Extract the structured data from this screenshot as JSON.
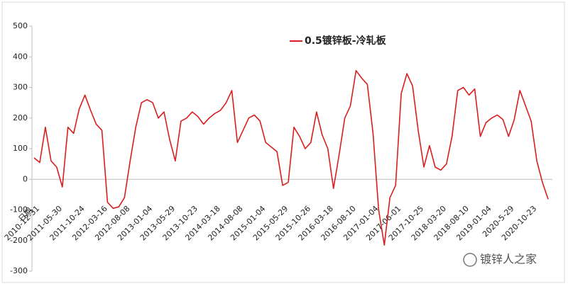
{
  "chart_data": {
    "type": "line",
    "x_label": "日期",
    "categories": [
      "2010-12-31",
      null,
      null,
      null,
      "2011-05-30",
      null,
      null,
      null,
      "2011-10-24",
      null,
      null,
      null,
      "2012-03-16",
      null,
      null,
      null,
      "2012-08-08",
      null,
      null,
      null,
      "2013-01-04",
      null,
      null,
      null,
      "2013-05-29",
      null,
      null,
      null,
      "2013-10-23",
      null,
      null,
      null,
      "2014-03-18",
      null,
      null,
      null,
      "2014-08-08",
      null,
      null,
      null,
      "2015-01-04",
      null,
      null,
      null,
      "2015-05-29",
      null,
      null,
      null,
      "2015-10-26",
      null,
      null,
      null,
      "2016-03-18",
      null,
      null,
      null,
      "2016-08-10",
      null,
      null,
      null,
      "2017-01-04",
      null,
      null,
      null,
      "2017-06-01",
      null,
      null,
      null,
      "2017-10-25",
      null,
      null,
      null,
      "2018-03-20",
      null,
      null,
      null,
      "2018-08-10",
      null,
      null,
      null,
      "2019-01-04",
      null,
      null,
      null,
      "2020-5-29",
      null,
      null,
      null,
      "2020-10-23",
      null,
      null,
      null
    ],
    "series": [
      {
        "name": "0.5镀锌板-冷轧板",
        "color": "#d91e1e",
        "values": [
          70,
          55,
          170,
          60,
          40,
          -25,
          170,
          150,
          230,
          275,
          225,
          180,
          160,
          -75,
          -95,
          -90,
          -60,
          60,
          170,
          250,
          260,
          250,
          200,
          220,
          130,
          60,
          190,
          200,
          220,
          205,
          180,
          200,
          215,
          225,
          250,
          290,
          120,
          160,
          200,
          210,
          190,
          120,
          105,
          90,
          -20,
          -10,
          170,
          140,
          100,
          120,
          220,
          145,
          100,
          -30,
          80,
          200,
          240,
          355,
          330,
          310,
          150,
          -100,
          -215,
          -60,
          -20,
          280,
          345,
          305,
          160,
          40,
          110,
          40,
          30,
          50,
          140,
          290,
          300,
          275,
          295,
          140,
          185,
          200,
          210,
          195,
          140,
          195,
          290,
          240,
          190,
          60,
          -10,
          -65
        ]
      }
    ],
    "ylim": [
      -300,
      500
    ],
    "yticks": [
      -300,
      -200,
      -100,
      0,
      100,
      200,
      300,
      400,
      500
    ],
    "grid": false,
    "watermark": "镀锌人之家"
  }
}
